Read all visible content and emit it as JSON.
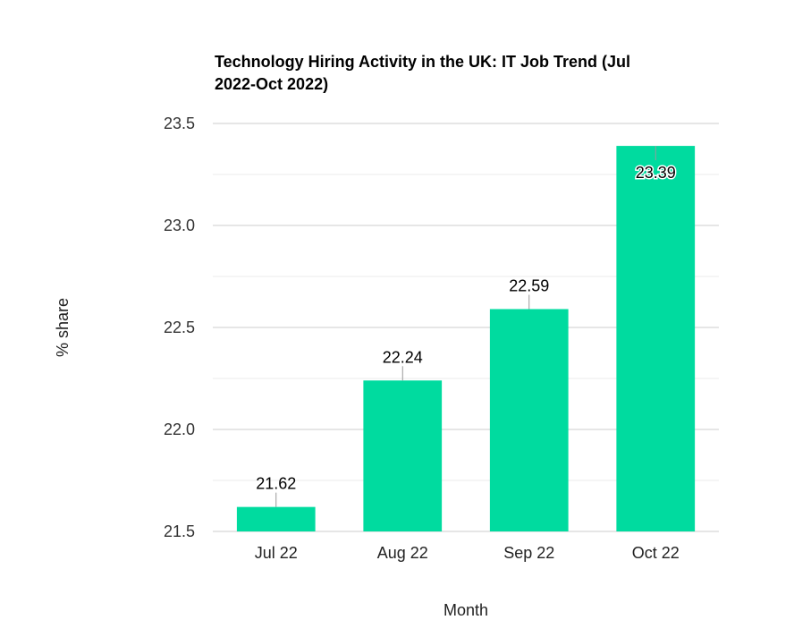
{
  "chart_data": {
    "type": "bar",
    "title_lines": [
      "Technology Hiring Activity in the UK: IT Job Trend (Jul",
      "2022-Oct 2022)"
    ],
    "xlabel": "Month",
    "ylabel": "% share",
    "categories": [
      "Jul 22",
      "Aug 22",
      "Sep 22",
      "Oct 22"
    ],
    "values": [
      21.62,
      22.24,
      22.59,
      23.39
    ],
    "data_labels": [
      "21.62",
      "22.24",
      "22.59",
      "23.39"
    ],
    "ylim": [
      21.5,
      23.5
    ],
    "yticks": [
      21.5,
      22.0,
      22.5,
      23.0,
      23.5
    ],
    "ytick_labels": [
      "21.5",
      "22.0",
      "22.5",
      "23.0",
      "23.5"
    ],
    "grid": true,
    "bar_color": "#00DB9F",
    "grid_color": "#CCCCCC",
    "minor_grid_color": "#EBEBEB"
  }
}
